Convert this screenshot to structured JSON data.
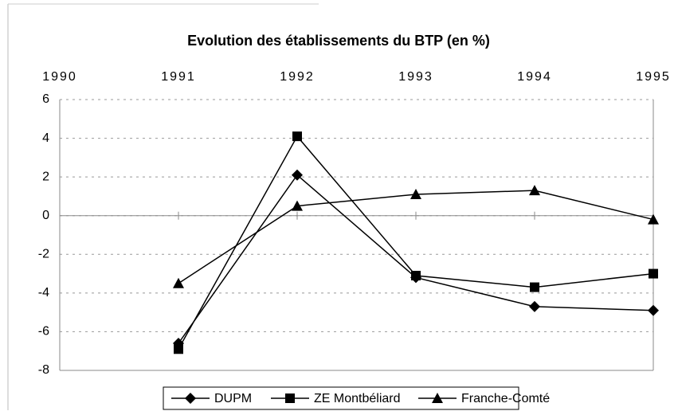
{
  "chart_data": {
    "type": "line",
    "title": "Evolution des établissements du BTP (en %)",
    "x": [
      1991,
      1992,
      1993,
      1994,
      1995
    ],
    "xlim": [
      1990,
      1995
    ],
    "xticks": [
      1990,
      1991,
      1992,
      1993,
      1994,
      1995
    ],
    "ylim": [
      -8,
      6
    ],
    "yticks": [
      6,
      4,
      2,
      0,
      -2,
      -4,
      -6,
      -8
    ],
    "grid": true,
    "legend": "bottom",
    "series": [
      {
        "name": "DUPM",
        "color": "#000000",
        "marker": "diamond",
        "values": [
          -6.6,
          2.1,
          -3.2,
          -4.7,
          -4.9
        ]
      },
      {
        "name": "ZE Montbéliard",
        "color": "#000000",
        "marker": "square",
        "values": [
          -6.9,
          4.1,
          -3.1,
          -3.7,
          -3.0
        ]
      },
      {
        "name": "Franche-Comté",
        "color": "#000000",
        "marker": "triangle",
        "values": [
          -3.5,
          0.5,
          1.1,
          1.3,
          -0.2
        ]
      }
    ]
  }
}
